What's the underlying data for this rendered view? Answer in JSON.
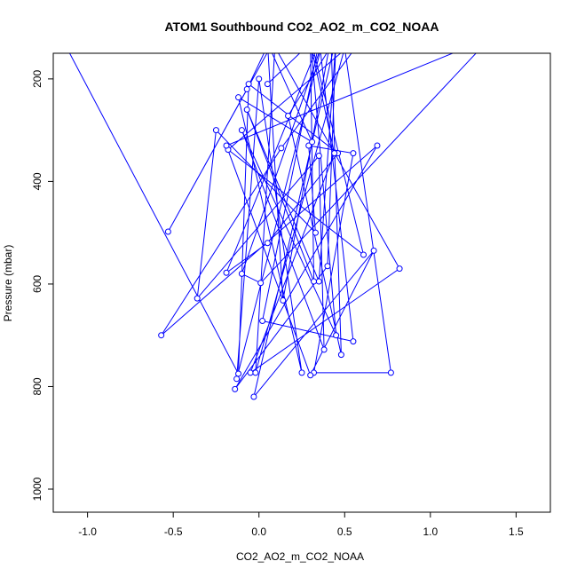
{
  "chart_data": {
    "type": "line",
    "title": "ATOM1 Southbound CO2_AO2_m_CO2_NOAA",
    "xlabel": "CO2_AO2_m_CO2_NOAA",
    "ylabel": "Pressure (mbar)",
    "xlim": [
      -1.2,
      1.7
    ],
    "ylim": [
      1045,
      150
    ],
    "y_reversed": true,
    "x_ticks": [
      -1.0,
      -0.5,
      0.0,
      0.5,
      1.0,
      1.5
    ],
    "x_tick_labels": [
      "-1.0",
      "-0.5",
      "0.0",
      "0.5",
      "1.0",
      "1.5"
    ],
    "y_ticks": [
      200,
      400,
      600,
      800,
      1000
    ],
    "y_tick_labels": [
      "200",
      "400",
      "600",
      "800",
      "1000"
    ],
    "grid": false,
    "line_color": "#0000ff",
    "marker": "open-circle",
    "series": [
      {
        "points": [
          [
            -1.12,
            140
          ],
          [
            -0.12,
            775
          ],
          [
            -0.06,
            210
          ],
          [
            0.46,
            345
          ],
          [
            0.05,
            520
          ],
          [
            -0.19,
            578
          ],
          [
            0.35,
            130
          ],
          [
            0.02,
            672
          ],
          [
            0.55,
            712
          ],
          [
            0.35,
            120
          ],
          [
            0.3,
            130
          ],
          [
            0.44,
            345
          ],
          [
            -0.05,
            773
          ],
          [
            0.82,
            570
          ],
          [
            0.08,
            130
          ],
          [
            -0.53,
            498
          ],
          [
            -0.07,
            220
          ],
          [
            0.1,
            100
          ],
          [
            -0.02,
            773
          ],
          [
            0.5,
            140
          ],
          [
            0.77,
            773
          ],
          [
            0.32,
            773
          ],
          [
            0.55,
            345
          ],
          [
            0.29,
            330
          ],
          [
            0.33,
            500
          ],
          [
            -0.25,
            300
          ],
          [
            -0.36,
            628
          ],
          [
            0.35,
            350
          ],
          [
            0.38,
            728
          ],
          [
            -0.1,
            300
          ],
          [
            0.45,
            700
          ],
          [
            0.3,
            120
          ],
          [
            0.61,
            543
          ],
          [
            -0.18,
            338
          ],
          [
            0.65,
            100
          ],
          [
            0.13,
            335
          ],
          [
            -0.57,
            700
          ],
          [
            0.69,
            330
          ],
          [
            -0.14,
            805
          ],
          [
            0.4,
            565
          ],
          [
            0.45,
            120
          ],
          [
            0.17,
            272
          ],
          [
            0.48,
            738
          ],
          [
            0.42,
            120
          ],
          [
            0.14,
            632
          ],
          [
            0.05,
            130
          ],
          [
            0.31,
            323
          ],
          [
            -0.12,
            236
          ],
          [
            0.25,
            773
          ],
          [
            0.0,
            200
          ],
          [
            -0.13,
            785
          ],
          [
            0.37,
            130
          ],
          [
            -0.1,
            580
          ],
          [
            0.01,
            598
          ],
          [
            1.35,
            120
          ],
          [
            -0.19,
            330
          ],
          [
            0.3,
            778
          ],
          [
            0.67,
            535
          ],
          [
            -0.03,
            820
          ],
          [
            0.45,
            120
          ],
          [
            0.35,
            595
          ],
          [
            -0.07,
            260
          ],
          [
            0.32,
            595
          ],
          [
            0.3,
            130
          ],
          [
            0.05,
            210
          ]
        ]
      }
    ]
  }
}
